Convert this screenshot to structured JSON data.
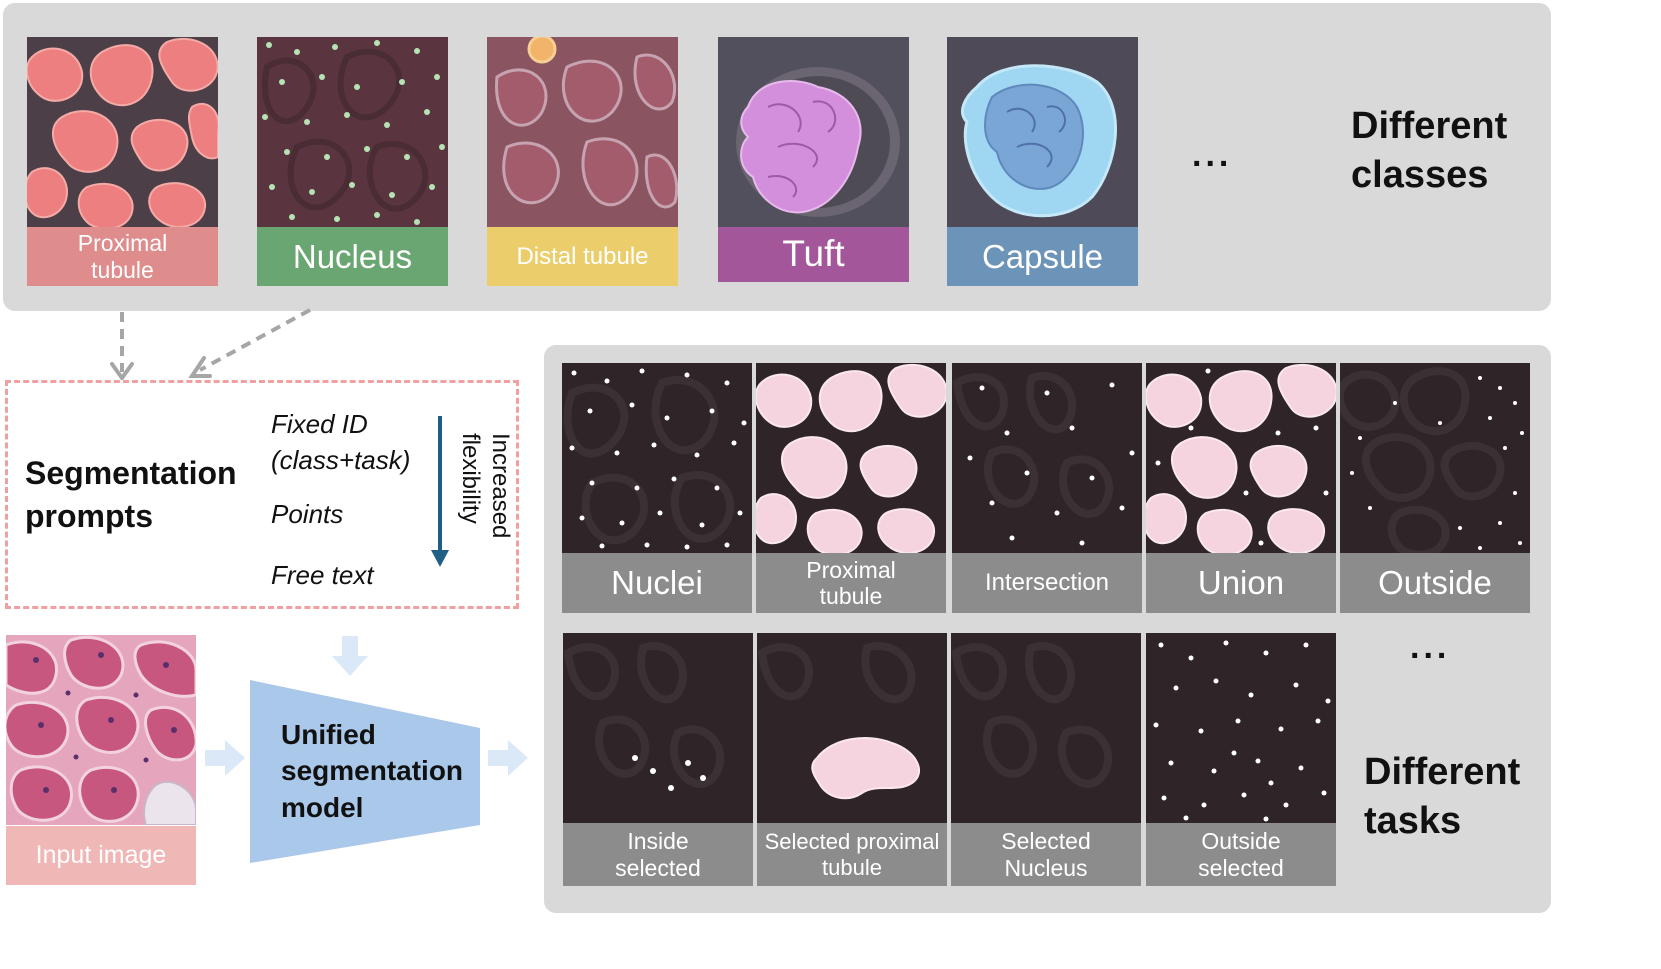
{
  "top_panel": {
    "classes": [
      {
        "label": "Proximal tubule",
        "label_line1": "Proximal",
        "label_line2": "tubule",
        "color": "#de8c8c",
        "image": "proximal-tubule-overlay"
      },
      {
        "label": "Nucleus",
        "color": "#6aa671",
        "image": "nucleus-overlay"
      },
      {
        "label": "Distal tubule",
        "color": "#eccd6c",
        "image": "distal-tubule-overlay"
      },
      {
        "label": "Tuft",
        "color": "#a3579a",
        "image": "tuft-overlay"
      },
      {
        "label": "Capsule",
        "color": "#6c93b8",
        "image": "capsule-overlay"
      }
    ],
    "ellipsis": "...",
    "heading_line1": "Different",
    "heading_line2": "classes"
  },
  "prompts": {
    "title_line1": "Segmentation",
    "title_line2": "prompts",
    "options": [
      "Fixed ID",
      "(class+task)",
      "Points",
      "Free text"
    ],
    "arrow_label_line1": "Increased",
    "arrow_label_line2": "flexibility",
    "arrow_color": "#1f5f86",
    "border_color": "#f0a0a0"
  },
  "input": {
    "label": "Input image",
    "color": "#f0b7b7"
  },
  "model": {
    "line1": "Unified",
    "line2": "segmentation",
    "line3": "model",
    "color": "#a9c8ea"
  },
  "tasks_panel": {
    "row1": [
      {
        "label": "Nuclei",
        "mask": "nuclei"
      },
      {
        "label_line1": "Proximal",
        "label_line2": "tubule",
        "mask": "proximal"
      },
      {
        "label": "Intersection",
        "mask": "intersection"
      },
      {
        "label": "Union",
        "mask": "union"
      },
      {
        "label": "Outside",
        "mask": "outside"
      }
    ],
    "row2": [
      {
        "label_line1": "Inside",
        "label_line2": "selected",
        "mask": "inside-selected"
      },
      {
        "label_line1": "Selected proximal",
        "label_line2": "tubule",
        "mask": "selected-proximal"
      },
      {
        "label_line1": "Selected",
        "label_line2": "Nucleus",
        "mask": "selected-nucleus"
      },
      {
        "label_line1": "Outside",
        "label_line2": "selected",
        "mask": "outside-selected"
      }
    ],
    "ellipsis": "...",
    "heading_line1": "Different",
    "heading_line2": "tasks",
    "label_bar_color": "#8c8c8c"
  }
}
